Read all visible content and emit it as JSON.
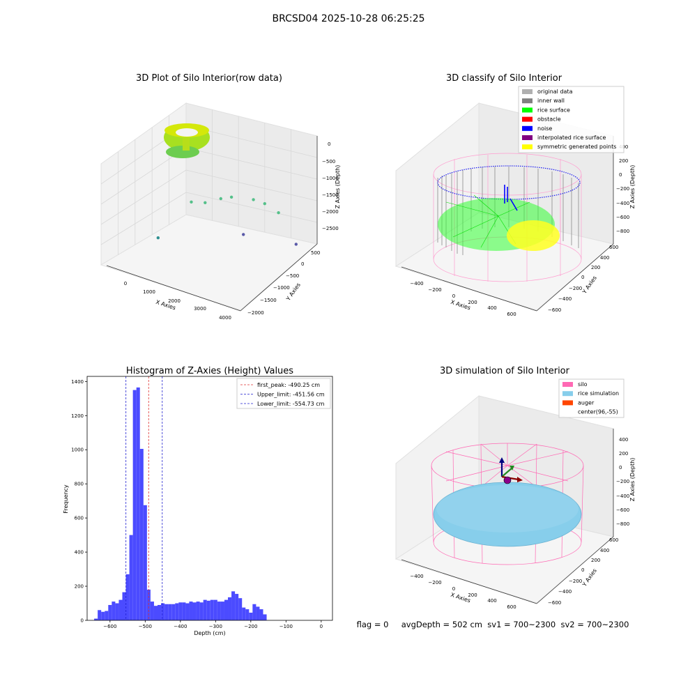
{
  "suptitle": "BRCSD04 2025-10-28 06:25:25",
  "status_line": "flag = 0     avgDepth = 502 cm  sv1 = 700~2300  sv2 = 700~2300",
  "colors": {
    "bar": "#4b4bff",
    "peak_line": "#e03030",
    "limit_line": "#2020d0",
    "silo_pink": "#ff69b4",
    "rice_sim": "#87ceeb",
    "auger": "#ff4500",
    "rice_surface": "#00ff00",
    "inner_wall": "#808080",
    "noise": "#0000ff",
    "symmetric": "#ffff00"
  },
  "chart_data": [
    {
      "type": "scatter",
      "title": "3D Plot of Silo Interior(row data)",
      "xlabel": "X Axies",
      "ylabel": "Y Axies",
      "zlabel": "Z Axies (Depth)",
      "x_ticks": [
        "0",
        "1000",
        "2000",
        "3000",
        "4000"
      ],
      "y_ticks": [
        "500",
        "0",
        "−500",
        "−1000",
        "−1500",
        "−2000"
      ],
      "z_ticks": [
        "0",
        "−500",
        "−1000",
        "−1500",
        "−2000",
        "−2500"
      ],
      "points": [
        {
          "x": 1500,
          "y": -400,
          "z": -1250
        },
        {
          "x": 1800,
          "y": -600,
          "z": -1300
        },
        {
          "x": 2300,
          "y": -700,
          "z": -1150
        },
        {
          "x": 2600,
          "y": -800,
          "z": -1100
        },
        {
          "x": 3100,
          "y": -1100,
          "z": -1200
        },
        {
          "x": 3300,
          "y": -1300,
          "z": -1350
        },
        {
          "x": 3600,
          "y": -1500,
          "z": -1600
        },
        {
          "x": 300,
          "y": -300,
          "z": -2300
        },
        {
          "x": 2200,
          "y": -1500,
          "z": -2400
        },
        {
          "x": 3800,
          "y": -1900,
          "z": -2500
        }
      ]
    },
    {
      "type": "scatter",
      "title": "3D classify of Silo Interior",
      "xlabel": "X Axies",
      "ylabel": "Y Axies",
      "zlabel": "Z Axies (Depth)",
      "x_ticks": [
        "−400",
        "−200",
        "0",
        "200",
        "400",
        "600"
      ],
      "y_ticks": [
        "600",
        "400",
        "200",
        "0",
        "−200",
        "−400",
        "−600"
      ],
      "z_ticks": [
        "400",
        "200",
        "0",
        "−200",
        "−400",
        "−600",
        "−800"
      ],
      "legend_position": "top-right",
      "legend": [
        {
          "label": "original data",
          "color": "#b0b0b0"
        },
        {
          "label": "inner wall",
          "color": "#808080"
        },
        {
          "label": "rice surface",
          "color": "#00ff00"
        },
        {
          "label": "obstacle",
          "color": "#ff0000"
        },
        {
          "label": "noise",
          "color": "#0000ff"
        },
        {
          "label": "interpolated rice surface",
          "color": "#800080"
        },
        {
          "label": "symmetric generated points",
          "color": "#ffff00"
        }
      ]
    },
    {
      "type": "bar",
      "title": "Histogram of Z-Axies (Height) Values",
      "xlabel": "Depth (cm)",
      "ylabel": "Frequency",
      "xlim": [
        -665,
        32
      ],
      "ylim": [
        0,
        1430
      ],
      "x_ticks": [
        -600,
        -500,
        -400,
        -300,
        -200,
        -100,
        0
      ],
      "y_ticks": [
        0,
        200,
        400,
        600,
        800,
        1000,
        1200,
        1400
      ],
      "bin_start": -645,
      "bin_width": 10,
      "values": [
        10,
        60,
        50,
        55,
        90,
        110,
        100,
        120,
        165,
        270,
        500,
        1350,
        1365,
        1005,
        675,
        180,
        110,
        85,
        90,
        100,
        95,
        95,
        95,
        100,
        105,
        105,
        100,
        110,
        105,
        110,
        105,
        120,
        115,
        120,
        120,
        110,
        110,
        120,
        135,
        170,
        155,
        130,
        75,
        65,
        45,
        95,
        80,
        65,
        35
      ],
      "vlines": [
        {
          "label": "first_peak: -490.25 cm",
          "x": -490.25,
          "color": "#e03030"
        },
        {
          "label": "Upper_limit: -451.56 cm",
          "x": -451.56,
          "color": "#2020d0"
        },
        {
          "label": "Lower_limit: -554.73 cm",
          "x": -554.73,
          "color": "#2020d0"
        }
      ],
      "legend_position": "top-right"
    },
    {
      "type": "scatter",
      "title": "3D simulation of Silo Interior",
      "xlabel": "X Axies",
      "ylabel": "Y Axies",
      "zlabel": "Z Axies (Depth)",
      "x_ticks": [
        "−400",
        "−200",
        "0",
        "200",
        "400",
        "600"
      ],
      "y_ticks": [
        "600",
        "400",
        "200",
        "0",
        "−200",
        "−400",
        "−600"
      ],
      "z_ticks": [
        "400",
        "200",
        "0",
        "−200",
        "−400",
        "−600",
        "−800"
      ],
      "legend_position": "top-right",
      "legend": [
        {
          "label": "silo",
          "color": "#ff69b4"
        },
        {
          "label": "rice simulation",
          "color": "#87ceeb"
        },
        {
          "label": "auger",
          "color": "#ff4500"
        },
        {
          "label": "center(96,-55)",
          "color": "#ffffff"
        }
      ]
    }
  ]
}
